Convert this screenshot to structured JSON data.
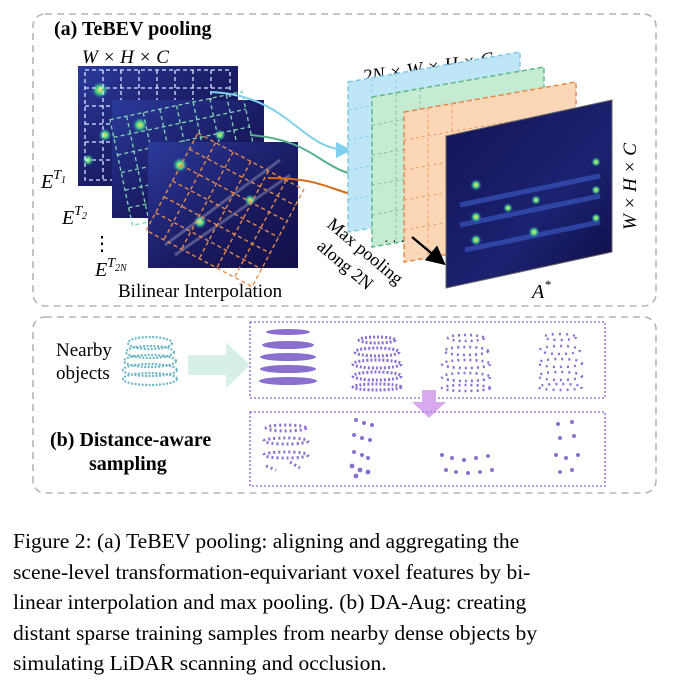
{
  "panel_a": {
    "title": "(a) TeBEV pooling",
    "input_dims": "W × H × C",
    "feature_labels": [
      {
        "base": "E",
        "sup": "T",
        "sub": "1"
      },
      {
        "base": "E",
        "sup": "T",
        "sub": "2"
      },
      {
        "base": "E",
        "sup": "T",
        "sub": "2N"
      }
    ],
    "ellipsis": "⋮",
    "interp_label": "Bilinear Interpolation",
    "stack_dims": "2N × W × H × C",
    "pool_label": [
      "Max pooling",
      "along 2N"
    ],
    "output_dims": "W × H × C",
    "output_label": {
      "base": "A",
      "sup": "*"
    },
    "colors": {
      "stack_blue": "#bfe6f7",
      "stack_green": "#c6ebd3",
      "stack_orange": "#fcd7b7",
      "arrow_blue": "#7fd0ec",
      "arrow_green": "#55b08c",
      "arrow_orange": "#d96a18",
      "feature_bg": "#1c1a5e"
    }
  },
  "panel_b": {
    "input_label": [
      "Nearby",
      "objects"
    ],
    "title": [
      "(b) Distance-aware",
      "sampling"
    ],
    "colors": {
      "points": "#8a6fd1",
      "frame": "#9b7fd6",
      "down_arrow": "#d9a9ee",
      "right_arrow": "#d6f0e6"
    }
  },
  "caption": {
    "lines": [
      "Figure 2: (a) TeBEV pooling: aligning and aggregating the",
      "scene-level transformation-equivariant voxel features by bi-",
      "linear interpolation and max pooling. (b) DA-Aug: creating",
      "distant sparse training samples from nearby dense objects by",
      "simulating LiDAR scanning and occlusion."
    ]
  }
}
